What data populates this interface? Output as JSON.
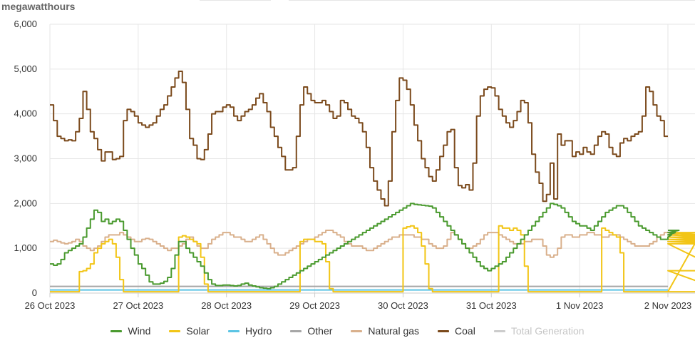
{
  "unit_label": "megawatthours",
  "chart_data": {
    "type": "line",
    "step": true,
    "ylim": [
      0,
      6000
    ],
    "y_ticks": [
      "0",
      "1,000",
      "2,000",
      "3,000",
      "4,000",
      "5,000",
      "6,000"
    ],
    "y_tick_values": [
      0,
      1000,
      2000,
      3000,
      4000,
      5000,
      6000
    ],
    "x_start": "26 Oct 2023",
    "x_ticks": [
      "26 Oct 2023",
      "27 Oct 2023",
      "28 Oct 2023",
      "29 Oct 2023",
      "30 Oct 2023",
      "31 Oct 2023",
      "1 Nov 2023",
      "2 Nov 2023"
    ],
    "x_tick_hours": [
      0,
      24,
      48,
      72,
      96,
      120,
      144,
      168
    ],
    "grid": true,
    "legend_position": "bottom",
    "series": [
      {
        "name": "Coal",
        "color": "#7b4a1c",
        "hourly": [
          4200,
          3850,
          3500,
          3450,
          3400,
          3420,
          3400,
          3600,
          3900,
          4500,
          4100,
          3600,
          3450,
          3200,
          2950,
          3150,
          3150,
          2980,
          3000,
          3050,
          3850,
          4100,
          4050,
          3950,
          3800,
          3750,
          3700,
          3750,
          3800,
          3950,
          4100,
          4200,
          4400,
          4600,
          4800,
          4950,
          4700,
          4100,
          3450,
          3300,
          3000,
          2980,
          3200,
          3550,
          4000,
          4050,
          4050,
          4150,
          4200,
          4150,
          3950,
          3850,
          3950,
          4050,
          4100,
          4200,
          4350,
          4450,
          4250,
          4050,
          3700,
          3500,
          3250,
          3050,
          2750,
          2750,
          2800,
          3500,
          4200,
          4600,
          4450,
          4300,
          4250,
          4250,
          4300,
          4200,
          4050,
          3900,
          3950,
          4300,
          4250,
          4100,
          3950,
          3900,
          3800,
          3600,
          3250,
          2800,
          2500,
          2300,
          2100,
          1950,
          2500,
          3600,
          4300,
          4800,
          4750,
          4550,
          4200,
          3750,
          3400,
          3000,
          2800,
          2600,
          2500,
          2750,
          3050,
          3300,
          3600,
          3650,
          2800,
          2400,
          2350,
          2420,
          2300,
          2900,
          3950,
          4400,
          4550,
          4600,
          4580,
          4400,
          4100,
          3950,
          3800,
          3700,
          3850,
          4050,
          4300,
          4250,
          3800,
          3100,
          2700,
          2450,
          2050,
          2200,
          2900,
          2100,
          3550,
          3300,
          3400,
          3400,
          3050,
          3150,
          3100,
          3250,
          3150,
          3100,
          3300,
          3500,
          3600,
          3550,
          3250,
          3100,
          3050,
          3350,
          3450,
          3400,
          3500,
          3550,
          3600,
          3950,
          4600,
          4500,
          4200,
          3950,
          3850,
          3500
        ]
      },
      {
        "name": "Wind",
        "color": "#4a9a2f",
        "hourly": [
          650,
          620,
          650,
          750,
          900,
          950,
          1000,
          1050,
          1100,
          1250,
          1450,
          1650,
          1850,
          1800,
          1600,
          1650,
          1550,
          1600,
          1650,
          1600,
          1400,
          1200,
          1000,
          850,
          650,
          550,
          400,
          250,
          200,
          200,
          220,
          260,
          350,
          550,
          850,
          1150,
          1150,
          1000,
          900,
          800,
          700,
          600,
          450,
          300,
          200,
          170,
          170,
          180,
          180,
          170,
          160,
          170,
          200,
          220,
          180,
          160,
          140,
          120,
          110,
          100,
          120,
          150,
          200,
          250,
          300,
          350,
          400,
          450,
          500,
          550,
          600,
          650,
          700,
          750,
          800,
          850,
          900,
          950,
          1000,
          1050,
          1100,
          1150,
          1200,
          1250,
          1300,
          1350,
          1400,
          1450,
          1500,
          1550,
          1600,
          1650,
          1700,
          1750,
          1800,
          1850,
          1900,
          1950,
          2000,
          1980,
          1970,
          1960,
          1950,
          1940,
          1900,
          1800,
          1700,
          1600,
          1500,
          1400,
          1300,
          1200,
          1100,
          1000,
          900,
          800,
          700,
          600,
          550,
          500,
          550,
          600,
          650,
          700,
          800,
          900,
          1000,
          1100,
          1200,
          1300,
          1400,
          1500,
          1600,
          1700,
          1800,
          1900,
          2000,
          1980,
          1950,
          1900,
          1800,
          1700,
          1600,
          1550,
          1500,
          1500,
          1450,
          1400,
          1500,
          1600,
          1700,
          1800,
          1850,
          1900,
          1950,
          1950,
          1900,
          1800,
          1700,
          1600,
          1500,
          1450,
          1400,
          1350,
          1300,
          1250,
          1200,
          1200,
          1250,
          1300,
          1350,
          1400
        ]
      },
      {
        "name": "Solar",
        "color": "#f2c516",
        "hourly": [
          30,
          30,
          30,
          30,
          30,
          30,
          30,
          30,
          480,
          500,
          550,
          650,
          900,
          1000,
          1100,
          1150,
          1200,
          1100,
          800,
          300,
          30,
          30,
          30,
          30,
          30,
          30,
          30,
          30,
          30,
          30,
          30,
          30,
          30,
          30,
          30,
          1250,
          1280,
          1250,
          1200,
          1150,
          1100,
          800,
          200,
          30,
          30,
          30,
          30,
          30,
          30,
          30,
          30,
          30,
          30,
          30,
          30,
          30,
          30,
          30,
          30,
          30,
          30,
          30,
          30,
          30,
          30,
          30,
          30,
          30,
          1150,
          1200,
          1200,
          1200,
          1150,
          1150,
          1100,
          700,
          100,
          30,
          30,
          30,
          30,
          30,
          30,
          30,
          30,
          30,
          30,
          30,
          30,
          30,
          30,
          30,
          30,
          30,
          30,
          30,
          1450,
          1480,
          1500,
          1450,
          1350,
          1050,
          650,
          100,
          30,
          30,
          30,
          30,
          30,
          30,
          30,
          30,
          30,
          30,
          30,
          30,
          30,
          30,
          30,
          30,
          30,
          30,
          1500,
          1450,
          1450,
          1400,
          1450,
          1400,
          1300,
          600,
          30,
          30,
          30,
          30,
          30,
          30,
          30,
          30,
          30,
          30,
          30,
          30,
          30,
          30,
          30,
          30,
          30,
          30,
          30,
          30,
          1450,
          1400,
          1350,
          1300,
          1250,
          900,
          30,
          30,
          30,
          30,
          30,
          30,
          30,
          30,
          30,
          30,
          30,
          30,
          30,
          30,
          30,
          30,
          30,
          30,
          30,
          30,
          30,
          1350,
          1300,
          1250,
          1200,
          1150,
          1100,
          500,
          30,
          30,
          30,
          30
        ]
      },
      {
        "name": "Natural gas",
        "color": "#d9b08c",
        "hourly": [
          1150,
          1180,
          1150,
          1120,
          1100,
          1120,
          1150,
          1200,
          1150,
          1050,
          1000,
          950,
          1000,
          1050,
          1150,
          1250,
          1300,
          1300,
          1300,
          1350,
          1300,
          1250,
          1200,
          1150,
          1150,
          1200,
          1220,
          1200,
          1150,
          1100,
          1050,
          1000,
          950,
          1000,
          1000,
          1050,
          1100,
          1200,
          1250,
          1150,
          1050,
          1000,
          1000,
          1100,
          1200,
          1250,
          1300,
          1350,
          1350,
          1300,
          1250,
          1250,
          1200,
          1150,
          1150,
          1200,
          1250,
          1300,
          1200,
          1100,
          1000,
          900,
          850,
          850,
          900,
          950,
          1000,
          1050,
          1100,
          1150,
          1200,
          1200,
          1250,
          1300,
          1350,
          1400,
          1400,
          1350,
          1300,
          1250,
          1150,
          1100,
          1050,
          1050,
          1050,
          1000,
          950,
          950,
          1000,
          1050,
          1100,
          1150,
          1200,
          1250,
          1250,
          1300,
          1300,
          1300,
          1300,
          1250,
          1250,
          1200,
          1200,
          1100,
          1050,
          1000,
          1000,
          1050,
          1200,
          1350,
          1300,
          1200,
          1100,
          1000,
          1000,
          1050,
          1100,
          1200,
          1300,
          1350,
          1350,
          1350,
          1300,
          1250,
          1200,
          1150,
          1100,
          1100,
          1100,
          1150,
          1150,
          1200,
          1200,
          1200,
          1050,
          850,
          800,
          850,
          1000,
          1250,
          1300,
          1300,
          1250,
          1250,
          1300,
          1300,
          1350,
          1350,
          1300,
          1300,
          1250,
          1250,
          1300,
          1300,
          1300,
          1250,
          1200,
          1150,
          1100,
          1050,
          1050,
          1050,
          1050,
          1100,
          1150,
          1250,
          1300,
          1350,
          1350,
          1350,
          1350,
          1300
        ]
      },
      {
        "name": "Other",
        "color": "#a6a6a6",
        "constant": 150
      },
      {
        "name": "Hydro",
        "color": "#5bc4e4",
        "constant": 70
      },
      {
        "name": "Total Generation",
        "color": "#cccccc",
        "hidden": true
      }
    ],
    "legend_order": [
      "Wind",
      "Solar",
      "Hydro",
      "Other",
      "Natural gas",
      "Coal",
      "Total Generation"
    ]
  }
}
